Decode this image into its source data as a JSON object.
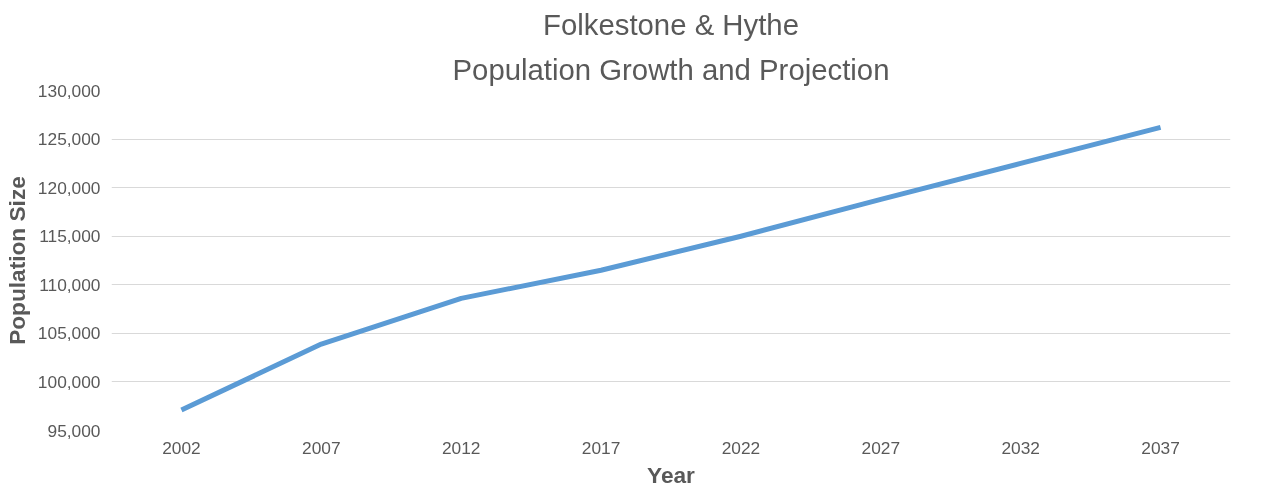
{
  "chart_data": {
    "type": "line",
    "title": "Folkestone & Hythe",
    "subtitle": "Population Growth and Projection",
    "xlabel": "Year",
    "ylabel": "Population Size",
    "categories": [
      "2002",
      "2007",
      "2012",
      "2017",
      "2022",
      "2027",
      "2032",
      "2037"
    ],
    "series": [
      {
        "color": "#5b9bd5",
        "values": [
          97100,
          103900,
          108600,
          111500,
          115000,
          118800,
          122500,
          126200
        ]
      }
    ],
    "ylim": [
      95000,
      130000
    ],
    "yticks": [
      {
        "value": 95000,
        "label": "95,000"
      },
      {
        "value": 100000,
        "label": "100,000"
      },
      {
        "value": 105000,
        "label": "105,000"
      },
      {
        "value": 110000,
        "label": "110,000"
      },
      {
        "value": 115000,
        "label": "115,000"
      },
      {
        "value": 120000,
        "label": "120,000"
      },
      {
        "value": 125000,
        "label": "125,000"
      },
      {
        "value": 130000,
        "label": "130,000"
      }
    ],
    "grid": "y",
    "marker": "none",
    "line_style": "solid"
  }
}
